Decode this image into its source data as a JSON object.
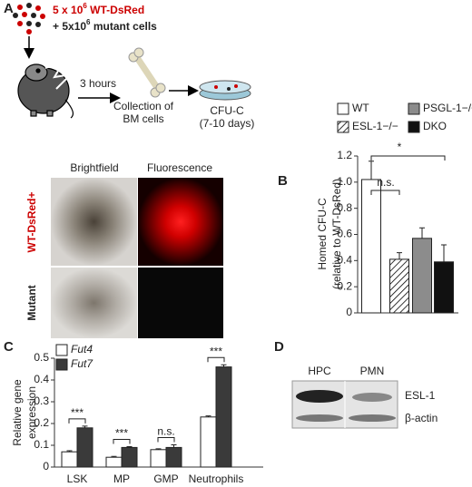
{
  "panels": {
    "a": {
      "label": "A",
      "dose1": {
        "pre": "5 x 10",
        "sup": "6",
        "post": " WT-DsRed"
      },
      "dose2": {
        "pre": "+ 5x10",
        "sup": "6",
        "post": " mutant cells"
      },
      "time": "3 hours",
      "collect": [
        "Collection of",
        "BM cells"
      ],
      "cfu": [
        "CFU-C",
        "(7-10 days)"
      ],
      "columns": [
        "Brightfield",
        "Fluorescence"
      ],
      "rows": [
        "WT-DsRed+",
        "Mutant"
      ]
    },
    "b": {
      "label": "B"
    },
    "c": {
      "label": "C"
    },
    "d": {
      "label": "D",
      "lanes": [
        "HPC",
        "PMN"
      ],
      "bands": [
        "ESL-1",
        "β-actin"
      ]
    }
  },
  "chart_data": [
    {
      "type": "bar",
      "y_label": [
        "Homed CFU-C",
        "(relative to WT-DsRed)"
      ],
      "categories": [
        null
      ],
      "series": [
        {
          "name": "WT",
          "color": "#ffffff",
          "values": [
            1.02
          ],
          "errors": [
            0.14
          ]
        },
        {
          "name": "ESL-1−/−",
          "color": "#ffffff",
          "pattern": "hatch",
          "values": [
            0.41
          ],
          "errors": [
            0.05
          ]
        },
        {
          "name": "PSGL-1−/−",
          "color": "#8c8c8c",
          "values": [
            0.57
          ],
          "errors": [
            0.08
          ]
        },
        {
          "name": "DKO",
          "color": "#111111",
          "values": [
            0.39
          ],
          "errors": [
            0.13
          ]
        }
      ],
      "ylim": [
        0,
        1.2
      ],
      "yticks": [
        0,
        0.2,
        0.4,
        0.6,
        0.8,
        {
          "value": 1,
          "label": "1.0"
        },
        1.2
      ],
      "annotations": [
        "*",
        "n.s."
      ]
    },
    {
      "type": "bar",
      "y_label": [
        "Relative gene",
        "expression"
      ],
      "categories": [
        "LSK",
        "MP",
        "GMP",
        "Neutrophils"
      ],
      "series": [
        {
          "name": "Fut4",
          "color": "#ffffff",
          "values": [
            0.07,
            0.045,
            0.08,
            0.23
          ],
          "errors": [
            0.005,
            0.004,
            0.004,
            0.005
          ]
        },
        {
          "name": "Fut7",
          "color": "#3a3a3a",
          "values": [
            0.18,
            0.09,
            0.09,
            0.46
          ],
          "errors": [
            0.008,
            0.004,
            0.012,
            0.01
          ]
        }
      ],
      "ylim": [
        0,
        0.5
      ],
      "yticks": [
        0,
        0.1,
        0.2,
        0.3,
        0.4,
        0.5
      ],
      "legend_italic": true,
      "annotations": [
        "***",
        "***",
        "n.s.",
        "***"
      ]
    }
  ]
}
